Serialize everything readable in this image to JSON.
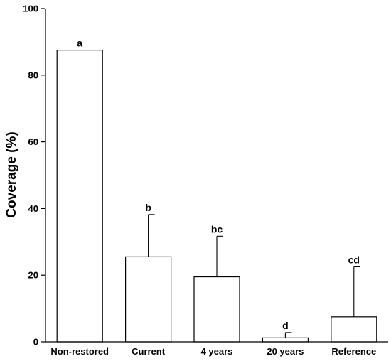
{
  "chart_data": {
    "type": "bar",
    "title": "",
    "xlabel": "",
    "ylabel": "Coverage (%)",
    "ylim": [
      0,
      100
    ],
    "yticks": [
      0,
      20,
      40,
      60,
      80,
      100
    ],
    "categories": [
      "Non-restored",
      "Current",
      "4 years",
      "20 years",
      "Reference"
    ],
    "values": [
      87.5,
      25.5,
      19.5,
      1.2,
      7.5
    ],
    "error_upper": [
      87.5,
      38.2,
      31.7,
      2.8,
      22.5
    ],
    "significance": [
      "a",
      "b",
      "bc",
      "d",
      "cd"
    ],
    "colors": {
      "bar_fill": "#ffffff",
      "bar_stroke": "#000000"
    }
  }
}
